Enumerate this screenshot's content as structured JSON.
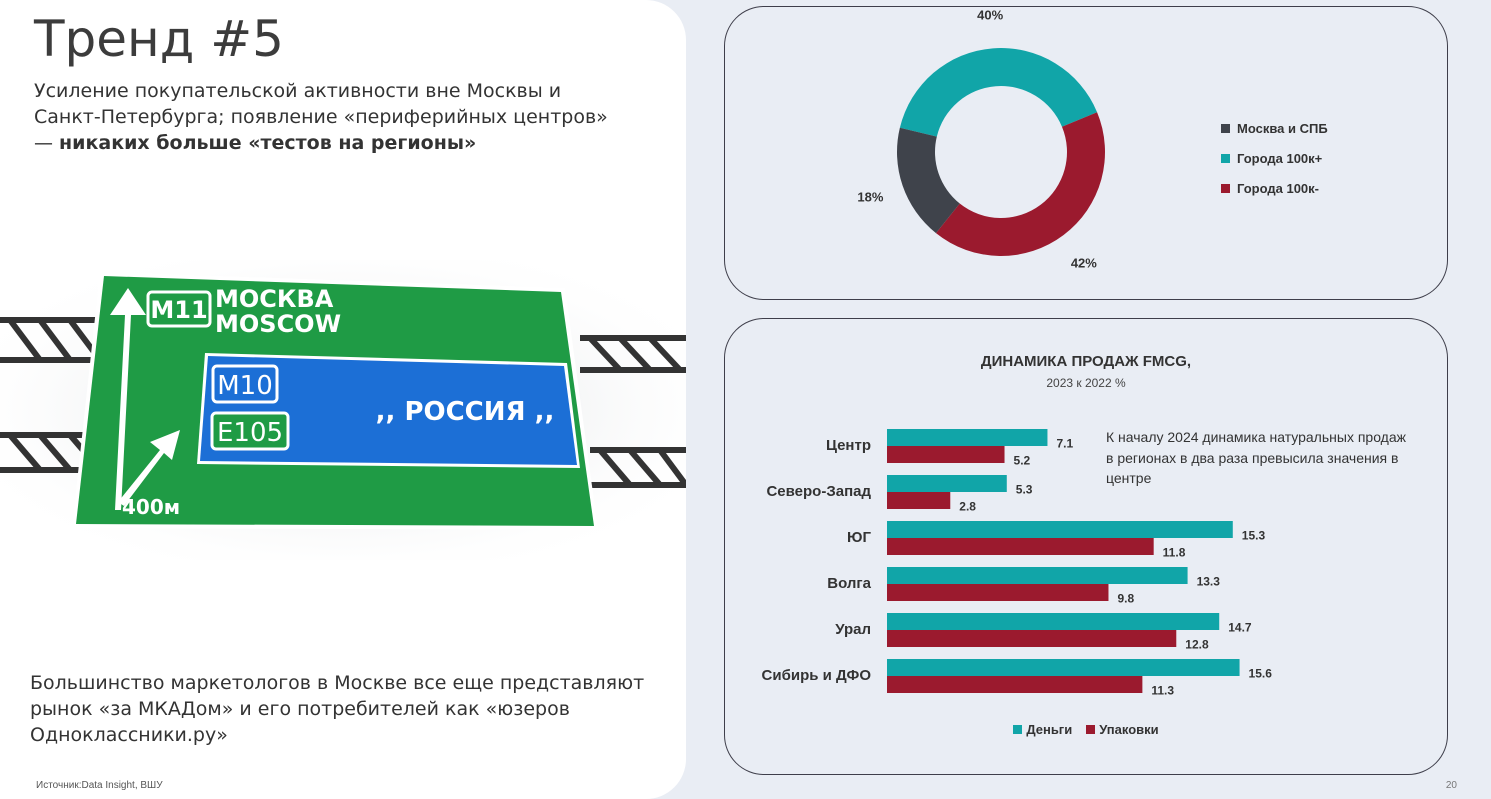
{
  "slide": {
    "title": "Тренд #5",
    "subtitle_line1": "Усиление покупательской активности вне Москвы и",
    "subtitle_line2": "Санкт-Петербурга; появление «периферийных центров»",
    "subtitle_line3_prefix": "— ",
    "subtitle_line3_bold": "никаких больше «тестов на регионы»",
    "bottom_text": "Большинство маркетологов в Москве все еще представляют рынок «за МКАДом» и его потребителей как «юзеров Одноклассники.ру»",
    "source": "Источник:Data Insight, ВШУ",
    "page_number": "20"
  },
  "road_sign": {
    "route1": "M11",
    "dest1_ru": "МОСКВА",
    "dest1_en": "MOSCOW",
    "route2": "M10",
    "route3": "E105",
    "dest2": ",, РОССИЯ ,,",
    "distance": "400м"
  },
  "chart_data": [
    {
      "type": "pie",
      "donut": true,
      "legend_position": "right",
      "categories": [
        "Москва и СПБ",
        "Города 100к+",
        "Города 100к-"
      ],
      "values": [
        18,
        40,
        42
      ],
      "labels": [
        "18%",
        "40%",
        "42%"
      ],
      "colors": [
        "#3f434b",
        "#11a5a8",
        "#9b1a2e"
      ]
    },
    {
      "type": "bar",
      "orientation": "horizontal",
      "title": "ДИНАМИКА ПРОДАЖ FMCG,",
      "subtitle": "2023 к 2022 %",
      "categories": [
        "Центр",
        "Северо-Запад",
        "ЮГ",
        "Волга",
        "Урал",
        "Сибирь и ДФО"
      ],
      "series": [
        {
          "name": "Деньги",
          "color": "#11a5a8",
          "values": [
            7.1,
            5.3,
            15.3,
            13.3,
            14.7,
            15.6
          ]
        },
        {
          "name": "Упаковки",
          "color": "#9b1a2e",
          "values": [
            5.2,
            2.8,
            11.8,
            9.8,
            12.8,
            11.3
          ]
        }
      ],
      "xlim": [
        0,
        16
      ],
      "grid": false,
      "legend_position": "bottom",
      "annotation": "К началу 2024 динамика натуральных продаж в регионах в два раза превысила значения в центре"
    }
  ]
}
